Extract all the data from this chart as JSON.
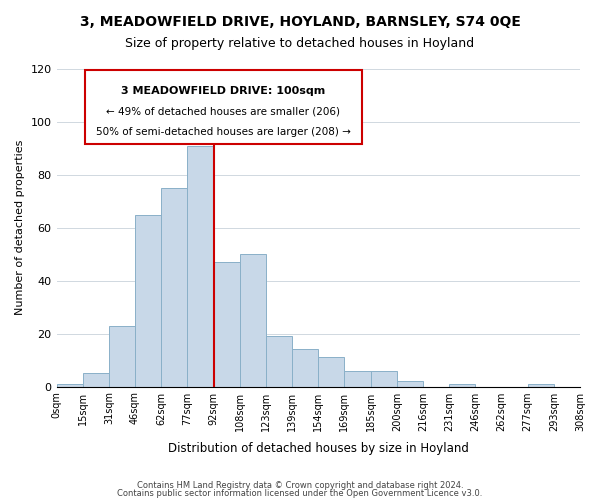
{
  "title1": "3, MEADOWFIELD DRIVE, HOYLAND, BARNSLEY, S74 0QE",
  "title2": "Size of property relative to detached houses in Hoyland",
  "xlabel": "Distribution of detached houses by size in Hoyland",
  "ylabel": "Number of detached properties",
  "bin_labels": [
    "0sqm",
    "15sqm",
    "31sqm",
    "46sqm",
    "62sqm",
    "77sqm",
    "92sqm",
    "108sqm",
    "123sqm",
    "139sqm",
    "154sqm",
    "169sqm",
    "185sqm",
    "200sqm",
    "216sqm",
    "231sqm",
    "246sqm",
    "262sqm",
    "277sqm",
    "293sqm",
    "308sqm"
  ],
  "bar_values": [
    1,
    5,
    23,
    65,
    75,
    91,
    47,
    50,
    19,
    14,
    11,
    6,
    6,
    2,
    0,
    1,
    0,
    0,
    1,
    0
  ],
  "bar_color": "#c8d8e8",
  "bar_edge_color": "#8ab0c8",
  "vline_x": 6,
  "vline_color": "#cc0000",
  "ylim": [
    0,
    120
  ],
  "annotation_title": "3 MEADOWFIELD DRIVE: 100sqm",
  "annotation_line1": "← 49% of detached houses are smaller (206)",
  "annotation_line2": "50% of semi-detached houses are larger (208) →",
  "annotation_box_color": "#ffffff",
  "annotation_box_edge": "#cc0000",
  "footer1": "Contains HM Land Registry data © Crown copyright and database right 2024.",
  "footer2": "Contains public sector information licensed under the Open Government Licence v3.0."
}
